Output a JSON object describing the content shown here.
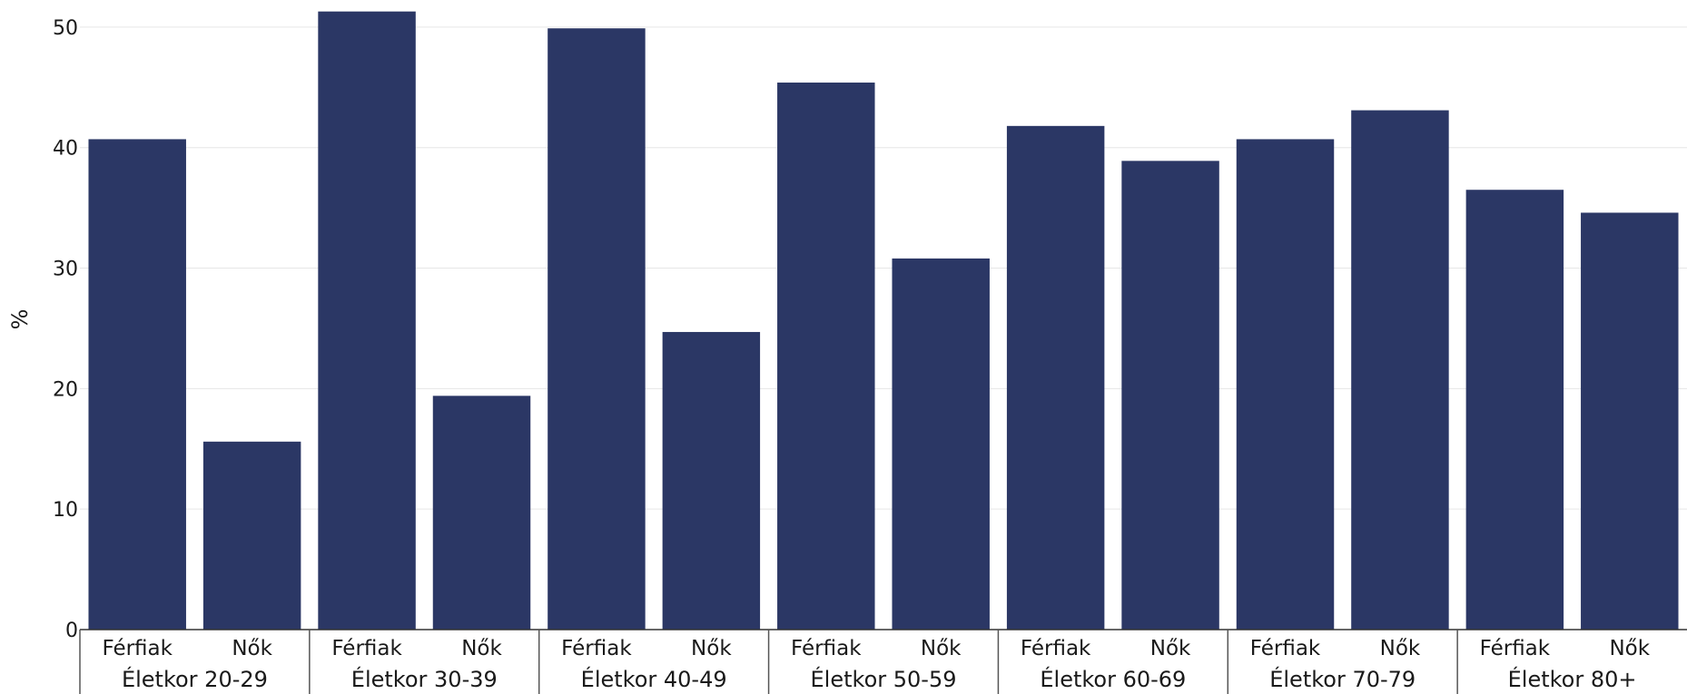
{
  "chart_data": {
    "type": "bar",
    "ylabel": "%",
    "ylim": [
      0,
      51.5
    ],
    "yticks": [
      0,
      10,
      20,
      30,
      40,
      50
    ],
    "grid": true,
    "bar_color": "#2b3765",
    "groups": [
      {
        "label": "Életkor 20-29",
        "categories": [
          "Férfiak",
          "Nők"
        ],
        "values": [
          40.7,
          15.6
        ]
      },
      {
        "label": "Életkor 30-39",
        "categories": [
          "Férfiak",
          "Nők"
        ],
        "values": [
          51.3,
          19.4
        ]
      },
      {
        "label": "Életkor 40-49",
        "categories": [
          "Férfiak",
          "Nők"
        ],
        "values": [
          49.9,
          24.7
        ]
      },
      {
        "label": "Életkor 50-59",
        "categories": [
          "Férfiak",
          "Nők"
        ],
        "values": [
          45.4,
          30.8
        ]
      },
      {
        "label": "Életkor 60-69",
        "categories": [
          "Férfiak",
          "Nők"
        ],
        "values": [
          41.8,
          38.9
        ]
      },
      {
        "label": "Életkor 70-79",
        "categories": [
          "Férfiak",
          "Nők"
        ],
        "values": [
          40.7,
          43.1
        ]
      },
      {
        "label": "Életkor 80+",
        "categories": [
          "Férfiak",
          "Nők"
        ],
        "values": [
          36.5,
          34.6
        ]
      }
    ]
  }
}
